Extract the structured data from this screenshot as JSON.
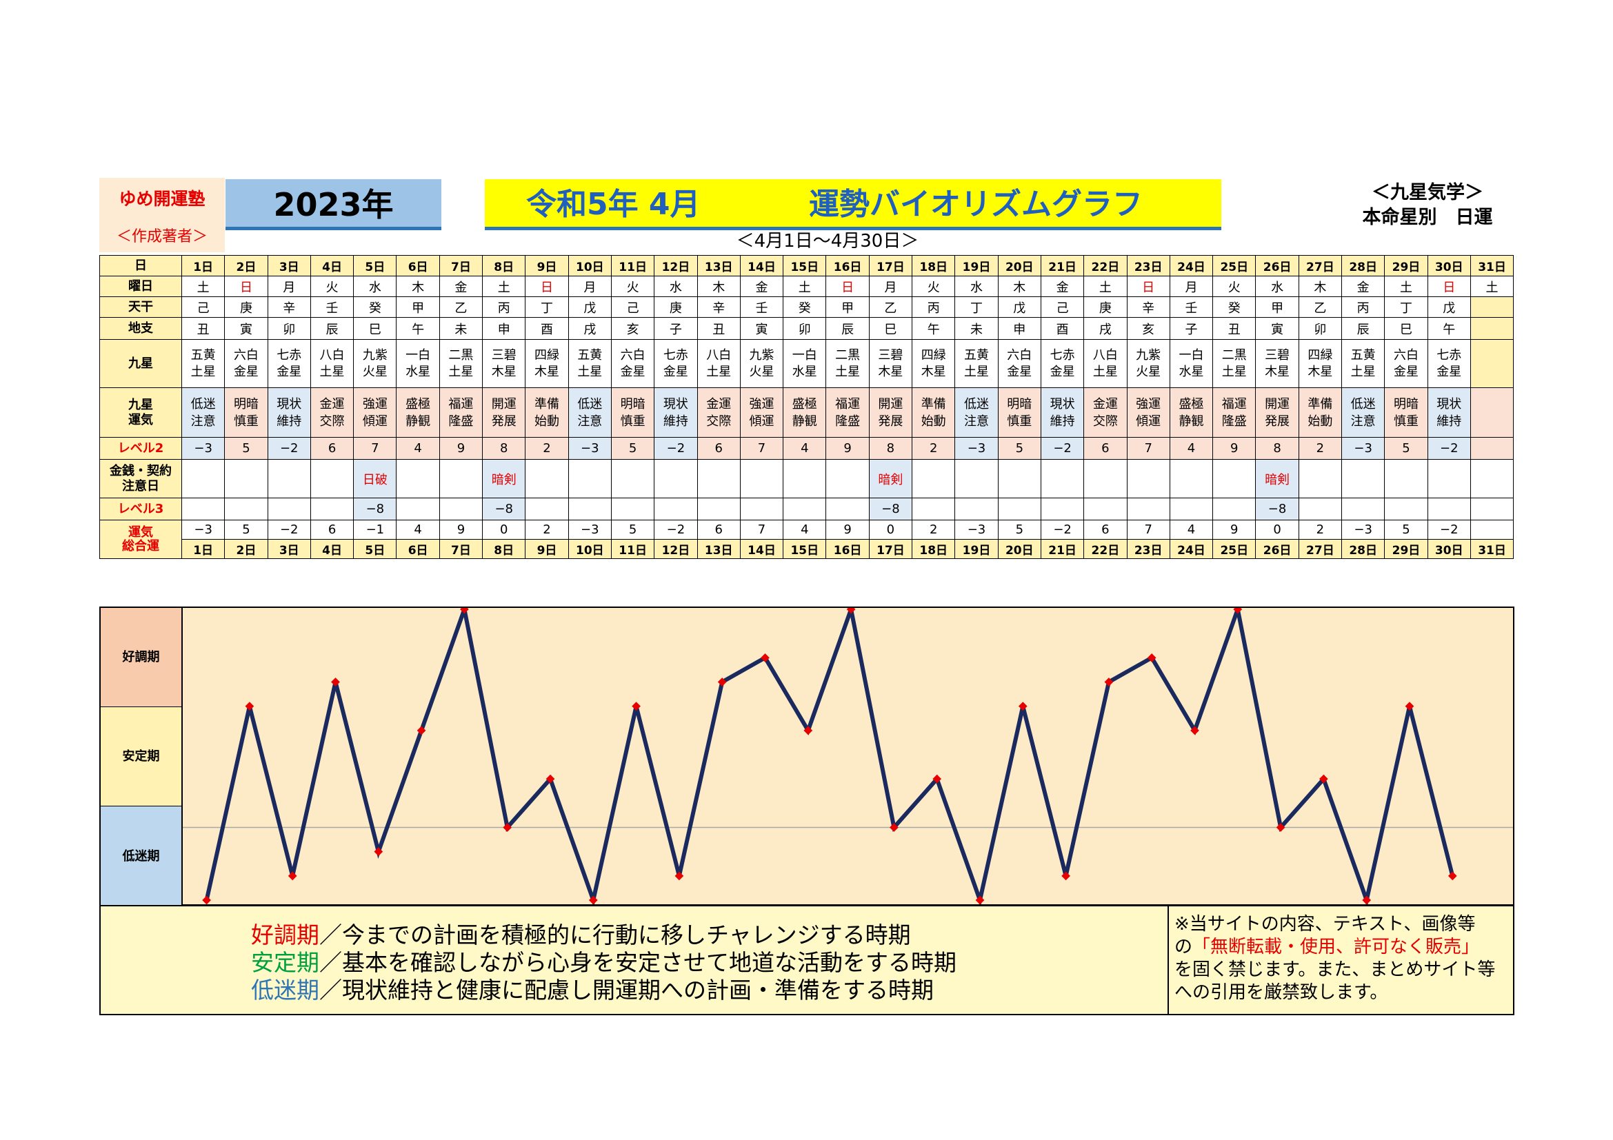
{
  "header": {
    "author_line1": "ゆめ開運塾",
    "author_line2": "＜作成著者＞",
    "year": "2023年",
    "title_left": "令和5年 4月",
    "title_right": "運勢バイオリズムグラフ",
    "subtitle": "＜4月1日～4月30日＞",
    "school_line1": "＜九星気学＞",
    "school_line2": "本命星別　日運"
  },
  "row_labels": {
    "day": "日",
    "weekday": "曜日",
    "tenkan": "天干",
    "chishi": "地支",
    "kyusei": "九星",
    "kyusei_unki_1": "九星",
    "kyusei_unki_2": "運気",
    "level2": "レベル2",
    "money_1": "金銭・契約",
    "money_2": "注意日",
    "level3": "レベル3",
    "total_1": "運気",
    "total_2": "総合運"
  },
  "days": [
    "1日",
    "2日",
    "3日",
    "4日",
    "5日",
    "6日",
    "7日",
    "8日",
    "9日",
    "10日",
    "11日",
    "12日",
    "13日",
    "14日",
    "15日",
    "16日",
    "17日",
    "18日",
    "19日",
    "20日",
    "21日",
    "22日",
    "23日",
    "24日",
    "25日",
    "26日",
    "27日",
    "28日",
    "29日",
    "30日",
    "31日"
  ],
  "weekdays": [
    "土",
    "日",
    "月",
    "火",
    "水",
    "木",
    "金",
    "土",
    "日",
    "月",
    "火",
    "水",
    "木",
    "金",
    "土",
    "日",
    "月",
    "火",
    "水",
    "木",
    "金",
    "土",
    "日",
    "月",
    "火",
    "水",
    "木",
    "金",
    "土",
    "日",
    "土"
  ],
  "tenkan": [
    "己",
    "庚",
    "辛",
    "壬",
    "癸",
    "甲",
    "乙",
    "丙",
    "丁",
    "戊",
    "己",
    "庚",
    "辛",
    "壬",
    "癸",
    "甲",
    "乙",
    "丙",
    "丁",
    "戊",
    "己",
    "庚",
    "辛",
    "壬",
    "癸",
    "甲",
    "乙",
    "丙",
    "丁",
    "戊",
    ""
  ],
  "chishi": [
    "丑",
    "寅",
    "卯",
    "辰",
    "巳",
    "午",
    "未",
    "申",
    "酉",
    "戌",
    "亥",
    "子",
    "丑",
    "寅",
    "卯",
    "辰",
    "巳",
    "午",
    "未",
    "申",
    "酉",
    "戌",
    "亥",
    "子",
    "丑",
    "寅",
    "卯",
    "辰",
    "巳",
    "午",
    ""
  ],
  "kyusei_top": [
    "五黄",
    "六白",
    "七赤",
    "八白",
    "九紫",
    "一白",
    "二黒",
    "三碧",
    "四緑",
    "五黄",
    "六白",
    "七赤",
    "八白",
    "九紫",
    "一白",
    "二黒",
    "三碧",
    "四緑",
    "五黄",
    "六白",
    "七赤",
    "八白",
    "九紫",
    "一白",
    "二黒",
    "三碧",
    "四緑",
    "五黄",
    "六白",
    "七赤",
    ""
  ],
  "kyusei_bottom": [
    "土星",
    "金星",
    "金星",
    "土星",
    "火星",
    "水星",
    "土星",
    "木星",
    "木星",
    "土星",
    "金星",
    "金星",
    "土星",
    "火星",
    "水星",
    "土星",
    "木星",
    "木星",
    "土星",
    "金星",
    "金星",
    "土星",
    "火星",
    "水星",
    "土星",
    "木星",
    "木星",
    "土星",
    "金星",
    "金星",
    ""
  ],
  "unki_top": [
    "低迷",
    "明暗",
    "現状",
    "金運",
    "強運",
    "盛極",
    "福運",
    "開運",
    "準備",
    "低迷",
    "明暗",
    "現状",
    "金運",
    "強運",
    "盛極",
    "福運",
    "開運",
    "準備",
    "低迷",
    "明暗",
    "現状",
    "金運",
    "強運",
    "盛極",
    "福運",
    "開運",
    "準備",
    "低迷",
    "明暗",
    "現状",
    ""
  ],
  "unki_bottom": [
    "注意",
    "慎重",
    "維持",
    "交際",
    "傾運",
    "静観",
    "隆盛",
    "発展",
    "始動",
    "注意",
    "慎重",
    "維持",
    "交際",
    "傾運",
    "静観",
    "隆盛",
    "発展",
    "始動",
    "注意",
    "慎重",
    "維持",
    "交際",
    "傾運",
    "静観",
    "隆盛",
    "発展",
    "始動",
    "注意",
    "慎重",
    "維持",
    ""
  ],
  "level2": [
    "−3",
    "5",
    "−2",
    "6",
    "7",
    "4",
    "9",
    "8",
    "2",
    "−3",
    "5",
    "−2",
    "6",
    "7",
    "4",
    "9",
    "8",
    "2",
    "−3",
    "5",
    "−2",
    "6",
    "7",
    "4",
    "9",
    "8",
    "2",
    "−3",
    "5",
    "−2",
    ""
  ],
  "money": [
    "",
    "",
    "",
    "",
    "日破",
    "",
    "",
    "暗剣",
    "",
    "",
    "",
    "",
    "",
    "",
    "",
    "",
    "暗剣",
    "",
    "",
    "",
    "",
    "",
    "",
    "",
    "",
    "暗剣",
    "",
    "",
    "",
    "",
    ""
  ],
  "level3": [
    "",
    "",
    "",
    "",
    "−8",
    "",
    "",
    "−8",
    "",
    "",
    "",
    "",
    "",
    "",
    "",
    "",
    "−8",
    "",
    "",
    "",
    "",
    "",
    "",
    "",
    "",
    "−8",
    "",
    "",
    "",
    "",
    ""
  ],
  "total": [
    "−3",
    "5",
    "−2",
    "6",
    "−1",
    "4",
    "9",
    "0",
    "2",
    "−3",
    "5",
    "−2",
    "6",
    "7",
    "4",
    "9",
    "0",
    "2",
    "−3",
    "5",
    "−2",
    "6",
    "7",
    "4",
    "9",
    "0",
    "2",
    "−3",
    "5",
    "−2",
    ""
  ],
  "zones": {
    "good": "好調期",
    "stable": "安定期",
    "low": "低迷期"
  },
  "legend": {
    "good_term": "好調期",
    "good_text": "／今までの計画を積極的に行動に移しチャレンジする時期",
    "stable_term": "安定期",
    "stable_text": "／基本を確認しながら心身を安定させて地道な活動をする時期",
    "low_term": "低迷期",
    "low_text": "／現状維持と健康に配慮し開運期への計画・準備をする時期"
  },
  "notice": {
    "line1": "※当サイトの内容、テキスト、画像等",
    "line2_pre": "の",
    "line2_red": "「無断転載・使用、許可なく販売」",
    "line3": "を固く禁じます。また、まとめサイト等",
    "line4": "への引用を厳禁致します。"
  },
  "colors": {
    "line": "#1a2a5e",
    "marker": "#e60000",
    "weekday_sun": "#e60000"
  },
  "chart_data": {
    "type": "line",
    "x": [
      "1日",
      "2日",
      "3日",
      "4日",
      "5日",
      "6日",
      "7日",
      "8日",
      "9日",
      "10日",
      "11日",
      "12日",
      "13日",
      "14日",
      "15日",
      "16日",
      "17日",
      "18日",
      "19日",
      "20日",
      "21日",
      "22日",
      "23日",
      "24日",
      "25日",
      "26日",
      "27日",
      "28日",
      "29日",
      "30日"
    ],
    "values": [
      -3,
      5,
      -2,
      6,
      -1,
      4,
      9,
      0,
      2,
      -3,
      5,
      -2,
      6,
      7,
      4,
      9,
      0,
      2,
      -3,
      5,
      -2,
      6,
      7,
      4,
      9,
      0,
      2,
      -3,
      5,
      -2
    ],
    "ylim": [
      -3,
      9
    ],
    "gridline_at": 0
  }
}
